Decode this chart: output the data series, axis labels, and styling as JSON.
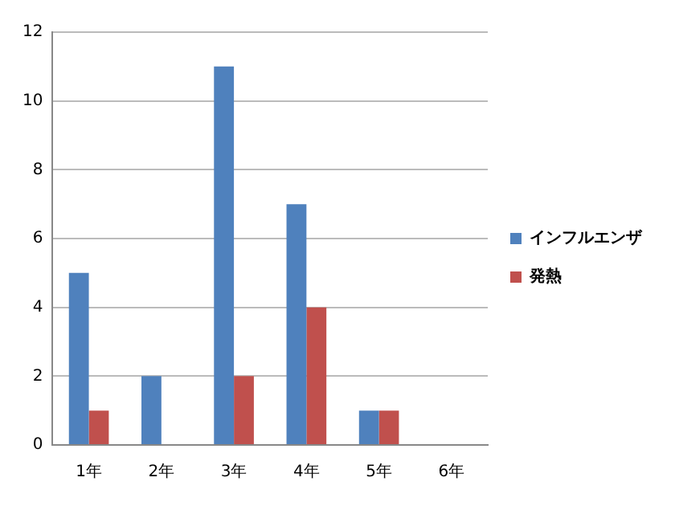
{
  "chart_data": {
    "type": "bar",
    "categories": [
      "1年",
      "2年",
      "3年",
      "4年",
      "5年",
      "6年"
    ],
    "series": [
      {
        "name": "インフルエンザ",
        "color": "#4f81bd",
        "values": [
          5,
          2,
          11,
          7,
          1,
          0
        ]
      },
      {
        "name": "発熱",
        "color": "#c0504d",
        "values": [
          1,
          0,
          2,
          4,
          1,
          0
        ]
      }
    ],
    "ylim": [
      0,
      12
    ],
    "yticks": [
      0,
      2,
      4,
      6,
      8,
      10,
      12
    ],
    "grid": "y",
    "legend": "right"
  }
}
